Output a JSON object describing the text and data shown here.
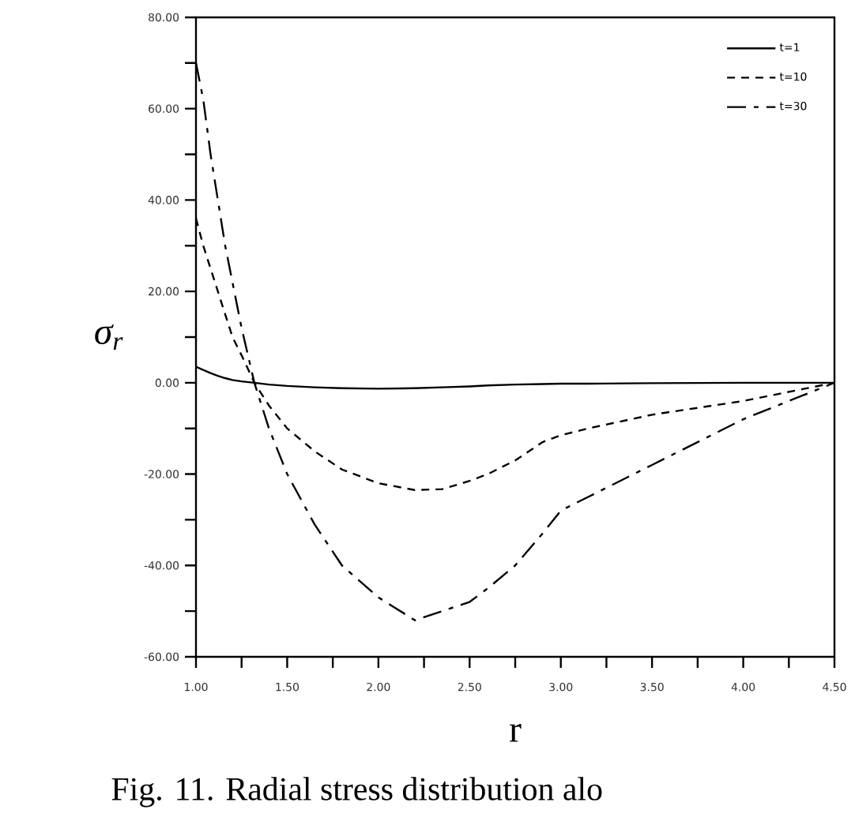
{
  "chart_data": {
    "type": "line",
    "annotations": [
      "Fig. 11. Radial stress distribution alo"
    ],
    "xlabel": "r",
    "ylabel": "σ$_{r}$",
    "x": [
      1.0,
      1.04,
      1.08,
      1.12,
      1.16,
      1.2,
      1.25,
      1.32,
      1.4,
      1.5,
      1.65,
      1.8,
      2.0,
      2.2,
      2.35,
      2.5,
      2.6,
      2.75,
      2.9,
      3.0,
      3.15,
      3.5,
      4.0,
      4.5
    ],
    "series": [
      {
        "name": "t=1",
        "color": "#000000",
        "line_style": "solid",
        "values": [
          3.5,
          2.8,
          2.1,
          1.5,
          1.0,
          0.6,
          0.3,
          0.0,
          -0.4,
          -0.7,
          -1.0,
          -1.2,
          -1.3,
          -1.2,
          -1.0,
          -0.8,
          -0.6,
          -0.4,
          -0.3,
          -0.2,
          -0.2,
          -0.1,
          0.0,
          0.0
        ]
      },
      {
        "name": "t=10",
        "color": "#000000",
        "line_style": "dashed",
        "values": [
          36,
          30,
          25,
          20,
          15,
          10,
          6,
          0,
          -5,
          -10,
          -15,
          -19,
          -22,
          -23.5,
          -23.3,
          -21.5,
          -20,
          -17,
          -13,
          -11.5,
          -10,
          -7,
          -4,
          0
        ]
      },
      {
        "name": "t=30",
        "color": "#000000",
        "line_style": "dashdot",
        "values": [
          70,
          62,
          50,
          40,
          30,
          22,
          12,
          0,
          -10,
          -20,
          -31,
          -40,
          -47,
          -52,
          -50,
          -48,
          -45,
          -40,
          -33,
          -28,
          -25,
          -18,
          -8,
          0
        ]
      }
    ],
    "xlim": [
      1.0,
      4.5
    ],
    "xticks": [
      {
        "value": 1.0,
        "label": "1.00"
      },
      {
        "value": 1.5,
        "label": "1.50"
      },
      {
        "value": 2.0,
        "label": "2.00"
      },
      {
        "value": 2.5,
        "label": "2.50"
      },
      {
        "value": 3.0,
        "label": "3.00"
      },
      {
        "value": 3.5,
        "label": "3.50"
      },
      {
        "value": 4.0,
        "label": "4.00"
      },
      {
        "value": 4.5,
        "label": "4.50"
      }
    ],
    "ylim": [
      -60,
      80
    ],
    "yticks": [
      {
        "value": -60,
        "label": "-60.00"
      },
      {
        "value": -40,
        "label": "-40.00"
      },
      {
        "value": -20,
        "label": "-20.00"
      },
      {
        "value": 0,
        "label": "0.00"
      },
      {
        "value": 20,
        "label": "20.00"
      },
      {
        "value": 40,
        "label": "40.00"
      },
      {
        "value": 60,
        "label": "60.00"
      },
      {
        "value": 80,
        "label": "80.00"
      }
    ],
    "legend": "top right",
    "grid": false,
    "marker": "none"
  }
}
